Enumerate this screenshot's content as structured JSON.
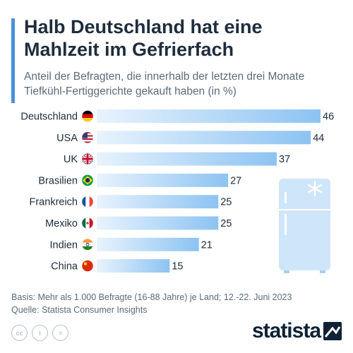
{
  "header": {
    "title_line1": "Halb Deutschland hat eine",
    "title_line2": "Mahlzeit im Gefrierfach",
    "subtitle_line1": "Anteil der Befragten, die innerhalb der letzten drei Monate",
    "subtitle_line2": "Tiefkühl-Fertiggerichte gekauft haben (in %)"
  },
  "chart_data": {
    "type": "bar",
    "orientation": "horizontal",
    "categories": [
      "Deutschland",
      "USA",
      "UK",
      "Brasilien",
      "Frankreich",
      "Mexiko",
      "Indien",
      "China"
    ],
    "values": [
      46,
      44,
      37,
      27,
      25,
      25,
      21,
      15
    ],
    "title": "Halb Deutschland hat eine Mahlzeit im Gefrierfach",
    "subtitle": "Anteil der Befragten, die innerhalb der letzten drei Monate Tiefkühl-Fertiggerichte gekauft haben (in %)",
    "xlim": [
      0,
      46
    ],
    "grid": false,
    "legend": "none"
  },
  "colors": {
    "bar_start": "#e8f3fd",
    "bar_end": "#8cc3f2",
    "accent": "#4a90d9",
    "fridge": "#cfe6fa",
    "fridge_dark": "#a9cff0"
  },
  "flags": [
    "de-flag-icon",
    "us-flag-icon",
    "uk-flag-icon",
    "br-flag-icon",
    "fr-flag-icon",
    "mx-flag-icon",
    "in-flag-icon",
    "cn-flag-icon"
  ],
  "footer": {
    "basis": "Basis: Mehr als 1.000 Befragte (16-88 Jahre) je Land; 12.-22. Juni 2023",
    "source": "Quelle: Statista Consumer Insights"
  },
  "license_icons": [
    "cc",
    "i",
    "="
  ],
  "brand": "statista"
}
